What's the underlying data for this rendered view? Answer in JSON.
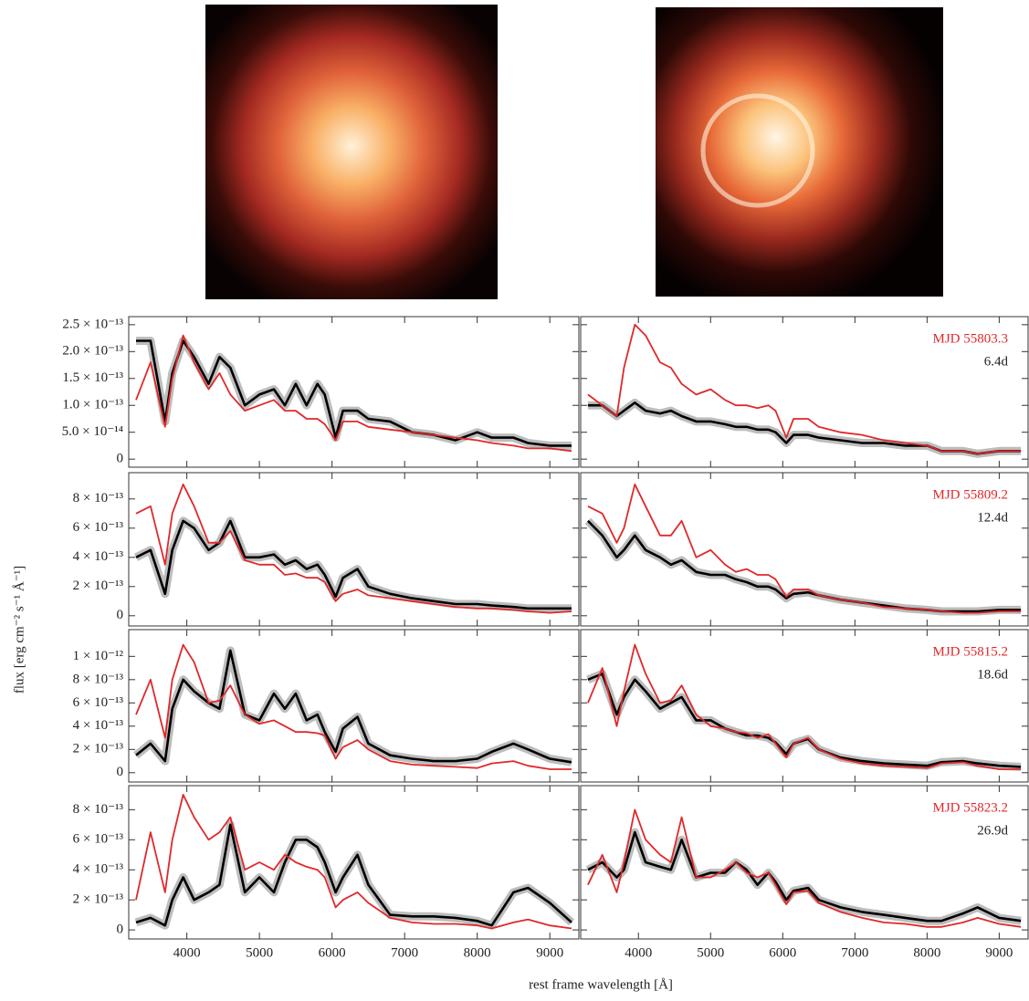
{
  "axes": {
    "xlabel": "rest frame wavelength [Å]",
    "ylabel": "flux [erg cm⁻² s⁻¹ Å⁻¹]"
  },
  "chart_data": [
    {
      "type": "line",
      "xlim": [
        3200,
        9400
      ],
      "xticks": [
        4000,
        5000,
        6000,
        7000,
        8000,
        9000
      ],
      "ylim": [
        -1.5e-14,
        2.65e-13
      ],
      "yticks": [
        0,
        {
          "value": 5e-14,
          "label": "5.0 × 10⁻¹⁴"
        },
        {
          "value": 1e-13,
          "label": "1.0 × 10⁻¹³"
        },
        {
          "value": 1.5e-13,
          "label": "1.5 × 10⁻¹³"
        },
        {
          "value": 2e-13,
          "label": "2.0 × 10⁻¹³"
        },
        {
          "value": 2.5e-13,
          "label": "2.5 × 10⁻¹³"
        }
      ],
      "x": [
        3300,
        3500,
        3700,
        3800,
        3950,
        4100,
        4300,
        4450,
        4600,
        4800,
        5000,
        5200,
        5350,
        5500,
        5650,
        5800,
        5900,
        6050,
        6150,
        6350,
        6500,
        6800,
        7100,
        7400,
        7700,
        8000,
        8200,
        8500,
        8700,
        9000,
        9300
      ],
      "panels": [
        {
          "series": [
            {
              "color": "#000000",
              "halo": "#bdbdbd",
              "values": [
                2.2e-13,
                2.2e-13,
                7e-14,
                1.6e-13,
                2.2e-13,
                1.9e-13,
                1.4e-13,
                1.9e-13,
                1.7e-13,
                1e-13,
                1.2e-13,
                1.3e-13,
                1e-13,
                1.4e-13,
                1e-13,
                1.4e-13,
                1.2e-13,
                4e-14,
                9e-14,
                9e-14,
                7.5e-14,
                7e-14,
                5e-14,
                4.5e-14,
                3.5e-14,
                5e-14,
                4e-14,
                4e-14,
                3e-14,
                2.5e-14,
                2.5e-14
              ]
            },
            {
              "color": "#e0282a",
              "values": [
                1.1e-13,
                1.8e-13,
                6e-14,
                1.5e-13,
                2.3e-13,
                1.8e-13,
                1.3e-13,
                1.6e-13,
                1.2e-13,
                9e-14,
                1e-13,
                1.1e-13,
                9e-14,
                9e-14,
                7.5e-14,
                7.5e-14,
                6.5e-14,
                3.5e-14,
                7e-14,
                7e-14,
                6e-14,
                5.5e-14,
                5e-14,
                4.5e-14,
                4e-14,
                3.5e-14,
                3e-14,
                2.5e-14,
                2e-14,
                2e-14,
                1.5e-14
              ]
            }
          ]
        },
        {
          "annotations": [
            "MJD 55803.3",
            "6.4d"
          ],
          "series": [
            {
              "color": "#000000",
              "halo": "#bdbdbd",
              "values": [
                1e-13,
                1e-13,
                8e-14,
                9e-14,
                1.05e-13,
                9e-14,
                8.5e-14,
                9e-14,
                8e-14,
                7e-14,
                7e-14,
                6.5e-14,
                6e-14,
                6e-14,
                5.5e-14,
                5.5e-14,
                5e-14,
                3e-14,
                4.5e-14,
                4.5e-14,
                4e-14,
                3.5e-14,
                3e-14,
                3e-14,
                2.5e-14,
                2.5e-14,
                1.5e-14,
                1.5e-14,
                1e-14,
                1.5e-14,
                1.5e-14
              ]
            },
            {
              "color": "#e0282a",
              "values": [
                1.2e-13,
                1e-13,
                8e-14,
                1.7e-13,
                2.5e-13,
                2.3e-13,
                1.8e-13,
                1.7e-13,
                1.4e-13,
                1.2e-13,
                1.3e-13,
                1.1e-13,
                1e-13,
                1e-13,
                9.5e-14,
                1e-13,
                9e-14,
                4e-14,
                7.5e-14,
                7.5e-14,
                6e-14,
                5e-14,
                4.5e-14,
                3.5e-14,
                3e-14,
                2.5e-14,
                1.5e-14,
                1.5e-14,
                1e-14,
                1.5e-14,
                1.5e-14
              ]
            }
          ]
        }
      ]
    },
    {
      "type": "line",
      "xlim": [
        3200,
        9400
      ],
      "xticks": [
        4000,
        5000,
        6000,
        7000,
        8000,
        9000
      ],
      "ylim": [
        -7e-14,
        9.8e-13
      ],
      "yticks": [
        0,
        {
          "value": 2e-13,
          "label": "2 × 10⁻¹³"
        },
        {
          "value": 4e-13,
          "label": "4 × 10⁻¹³"
        },
        {
          "value": 6e-13,
          "label": "6 × 10⁻¹³"
        },
        {
          "value": 8e-13,
          "label": "8 × 10⁻¹³"
        }
      ],
      "x": [
        3300,
        3500,
        3700,
        3800,
        3950,
        4100,
        4300,
        4450,
        4600,
        4800,
        5000,
        5200,
        5350,
        5500,
        5650,
        5800,
        5900,
        6050,
        6150,
        6350,
        6500,
        6800,
        7100,
        7400,
        7700,
        8000,
        8200,
        8500,
        8700,
        9000,
        9300
      ],
      "panels": [
        {
          "series": [
            {
              "color": "#000000",
              "halo": "#bdbdbd",
              "values": [
                4e-13,
                4.5e-13,
                1.5e-13,
                4.5e-13,
                6.5e-13,
                6e-13,
                4.5e-13,
                5e-13,
                6.5e-13,
                4e-13,
                4e-13,
                4.2e-13,
                3.5e-13,
                3.8e-13,
                3.2e-13,
                3.5e-13,
                2.8e-13,
                1.3e-13,
                2.6e-13,
                3.2e-13,
                2e-13,
                1.5e-13,
                1.2e-13,
                1e-13,
                8e-14,
                8e-14,
                7e-14,
                6e-14,
                5e-14,
                5e-14,
                5e-14
              ]
            },
            {
              "color": "#e0282a",
              "values": [
                7e-13,
                7.5e-13,
                3.5e-13,
                7e-13,
                9e-13,
                7.5e-13,
                5e-13,
                5e-13,
                5.8e-13,
                3.8e-13,
                3.5e-13,
                3.5e-13,
                2.8e-13,
                2.9e-13,
                2.6e-13,
                2.6e-13,
                2.3e-13,
                1e-13,
                1.5e-13,
                1.8e-13,
                1.4e-13,
                1.2e-13,
                1e-13,
                8e-14,
                6e-14,
                5e-14,
                5e-14,
                4e-14,
                3e-14,
                2e-14,
                3e-14
              ]
            }
          ]
        },
        {
          "annotations": [
            "MJD 55809.2",
            "12.4d"
          ],
          "series": [
            {
              "color": "#000000",
              "halo": "#bdbdbd",
              "values": [
                6.5e-13,
                5.5e-13,
                4e-13,
                4.5e-13,
                5.5e-13,
                4.5e-13,
                4e-13,
                3.5e-13,
                3.8e-13,
                3e-13,
                2.8e-13,
                2.8e-13,
                2.5e-13,
                2.3e-13,
                2e-13,
                2e-13,
                1.8e-13,
                1.2e-13,
                1.5e-13,
                1.6e-13,
                1.4e-13,
                1.1e-13,
                9e-14,
                7e-14,
                5e-14,
                4e-14,
                3e-14,
                3e-14,
                3e-14,
                4e-14,
                4e-14
              ]
            },
            {
              "color": "#e0282a",
              "values": [
                7.5e-13,
                7e-13,
                5e-13,
                6e-13,
                9e-13,
                7.5e-13,
                5.5e-13,
                5.5e-13,
                6.5e-13,
                4e-13,
                4.5e-13,
                3.5e-13,
                3e-13,
                3.2e-13,
                2.8e-13,
                2.8e-13,
                2.5e-13,
                1.3e-13,
                1.8e-13,
                1.8e-13,
                1.4e-13,
                1.1e-13,
                9e-14,
                6e-14,
                5e-14,
                4e-14,
                3e-14,
                2e-14,
                2e-14,
                3e-14,
                3e-14
              ]
            }
          ]
        }
      ]
    },
    {
      "type": "line",
      "xlim": [
        3200,
        9400
      ],
      "xticks": [
        4000,
        5000,
        6000,
        7000,
        8000,
        9000
      ],
      "ylim": [
        -8e-14,
        1.23e-12
      ],
      "yticks": [
        0,
        {
          "value": 2e-13,
          "label": "2 × 10⁻¹³"
        },
        {
          "value": 4e-13,
          "label": "4 × 10⁻¹³"
        },
        {
          "value": 6e-13,
          "label": "6 × 10⁻¹³"
        },
        {
          "value": 8e-13,
          "label": "8 × 10⁻¹³"
        },
        {
          "value": 1e-12,
          "label": "1 × 10⁻¹²"
        }
      ],
      "x": [
        3300,
        3500,
        3700,
        3800,
        3950,
        4100,
        4300,
        4450,
        4600,
        4800,
        5000,
        5200,
        5350,
        5500,
        5650,
        5800,
        5900,
        6050,
        6150,
        6350,
        6500,
        6800,
        7100,
        7400,
        7700,
        8000,
        8200,
        8500,
        8700,
        9000,
        9300
      ],
      "panels": [
        {
          "series": [
            {
              "color": "#000000",
              "halo": "#bdbdbd",
              "values": [
                1.5e-13,
                2.5e-13,
                1e-13,
                5.5e-13,
                8e-13,
                7e-13,
                6e-13,
                5.5e-13,
                1.05e-12,
                5e-13,
                4.5e-13,
                6.8e-13,
                5.5e-13,
                6.8e-13,
                4.5e-13,
                5e-13,
                3.5e-13,
                1.8e-13,
                3.8e-13,
                4.8e-13,
                2.5e-13,
                1.5e-13,
                1.2e-13,
                1e-13,
                1e-13,
                1.2e-13,
                1.8e-13,
                2.5e-13,
                2e-13,
                1.2e-13,
                9e-14
              ]
            },
            {
              "color": "#e0282a",
              "values": [
                5e-13,
                8e-13,
                3e-13,
                8e-13,
                1.1e-12,
                9.5e-13,
                6e-13,
                6.2e-13,
                7.5e-13,
                5e-13,
                4.2e-13,
                4.5e-13,
                4e-13,
                3.5e-13,
                3.5e-13,
                3.4e-13,
                3.2e-13,
                1.2e-13,
                2.2e-13,
                2.8e-13,
                2e-13,
                1e-13,
                7e-14,
                6e-14,
                5e-14,
                4e-14,
                8e-14,
                1e-13,
                6e-14,
                3e-14,
                3e-14
              ]
            }
          ]
        },
        {
          "annotations": [
            "MJD 55815.2",
            "18.6d"
          ],
          "series": [
            {
              "color": "#000000",
              "halo": "#bdbdbd",
              "values": [
                8e-13,
                8.5e-13,
                5e-13,
                6.5e-13,
                8e-13,
                7e-13,
                5.5e-13,
                6e-13,
                6.5e-13,
                4.5e-13,
                4.5e-13,
                3.8e-13,
                3.5e-13,
                3.2e-13,
                3.2e-13,
                3e-13,
                2.6e-13,
                1.6e-13,
                2.5e-13,
                2.9e-13,
                2e-13,
                1.3e-13,
                1e-13,
                8e-14,
                7e-14,
                6e-14,
                9e-14,
                1e-13,
                8e-14,
                6e-14,
                5e-14
              ]
            },
            {
              "color": "#e0282a",
              "values": [
                6e-13,
                9e-13,
                4e-13,
                7e-13,
                1.1e-12,
                8.5e-13,
                6e-13,
                6.2e-13,
                7.5e-13,
                5e-13,
                4e-13,
                3.8e-13,
                3.5e-13,
                3.4e-13,
                3e-13,
                3.3e-13,
                2.5e-13,
                1.3e-13,
                2.5e-13,
                3e-13,
                2e-13,
                1.2e-13,
                8e-14,
                6e-14,
                5e-14,
                4e-14,
                8e-14,
                9e-14,
                6e-14,
                3e-14,
                3e-14
              ]
            }
          ]
        }
      ]
    },
    {
      "type": "line",
      "xlim": [
        3200,
        9400
      ],
      "xticks": [
        4000,
        5000,
        6000,
        7000,
        8000,
        9000
      ],
      "ylim": [
        -6e-14,
        9.6e-13
      ],
      "yticks": [
        0,
        {
          "value": 2e-13,
          "label": "2 × 10⁻¹³"
        },
        {
          "value": 4e-13,
          "label": "4 × 10⁻¹³"
        },
        {
          "value": 6e-13,
          "label": "6 × 10⁻¹³"
        },
        {
          "value": 8e-13,
          "label": "8 × 10⁻¹³"
        }
      ],
      "x": [
        3300,
        3500,
        3700,
        3800,
        3950,
        4100,
        4300,
        4450,
        4600,
        4800,
        5000,
        5200,
        5350,
        5500,
        5650,
        5800,
        5900,
        6050,
        6150,
        6350,
        6500,
        6800,
        7100,
        7400,
        7700,
        8000,
        8200,
        8500,
        8700,
        9000,
        9300
      ],
      "panels": [
        {
          "series": [
            {
              "color": "#000000",
              "halo": "#bdbdbd",
              "values": [
                5e-14,
                8e-14,
                3e-14,
                2e-13,
                3.5e-13,
                2e-13,
                2.5e-13,
                3e-13,
                7e-13,
                2.5e-13,
                3.5e-13,
                2.5e-13,
                4.5e-13,
                6e-13,
                6e-13,
                5.5e-13,
                4.5e-13,
                2.5e-13,
                3.5e-13,
                5e-13,
                3e-13,
                1e-13,
                9e-14,
                9e-14,
                8e-14,
                6e-14,
                3e-14,
                2.5e-13,
                2.8e-13,
                1.8e-13,
                5e-14
              ]
            },
            {
              "color": "#e0282a",
              "values": [
                2e-13,
                6.5e-13,
                2.5e-13,
                6e-13,
                9e-13,
                7.5e-13,
                6e-13,
                6.5e-13,
                7.5e-13,
                4e-13,
                4.5e-13,
                4e-13,
                5e-13,
                4.5e-13,
                4.2e-13,
                4e-13,
                3.5e-13,
                1.5e-13,
                2e-13,
                2.5e-13,
                1.8e-13,
                8e-14,
                5e-14,
                4e-14,
                4e-14,
                3e-14,
                1e-14,
                5e-14,
                7e-14,
                3e-14,
                1e-14
              ]
            }
          ]
        },
        {
          "annotations": [
            "MJD 55823.2",
            "26.9d"
          ],
          "series": [
            {
              "color": "#000000",
              "halo": "#bdbdbd",
              "values": [
                4e-13,
                4.5e-13,
                3.5e-13,
                4e-13,
                6.5e-13,
                4.5e-13,
                4.2e-13,
                4e-13,
                6e-13,
                3.5e-13,
                3.8e-13,
                3.8e-13,
                4.5e-13,
                4e-13,
                3e-13,
                3.8e-13,
                3.2e-13,
                2e-13,
                2.6e-13,
                2.8e-13,
                2e-13,
                1.5e-13,
                1.2e-13,
                1e-13,
                8e-14,
                6e-14,
                6e-14,
                1.1e-13,
                1.5e-13,
                8e-14,
                6e-14
              ]
            },
            {
              "color": "#e0282a",
              "values": [
                3e-13,
                5e-13,
                2.5e-13,
                4.5e-13,
                8e-13,
                6e-13,
                5e-13,
                4.5e-13,
                7.5e-13,
                3.5e-13,
                3.5e-13,
                4e-13,
                4.5e-13,
                3.8e-13,
                3.5e-13,
                3.8e-13,
                3e-13,
                1.7e-13,
                2.5e-13,
                2.6e-13,
                1.8e-13,
                1.2e-13,
                8e-14,
                5e-14,
                4e-14,
                2e-14,
                2e-14,
                5e-14,
                8e-14,
                4e-14,
                2e-14
              ]
            }
          ]
        }
      ]
    }
  ]
}
